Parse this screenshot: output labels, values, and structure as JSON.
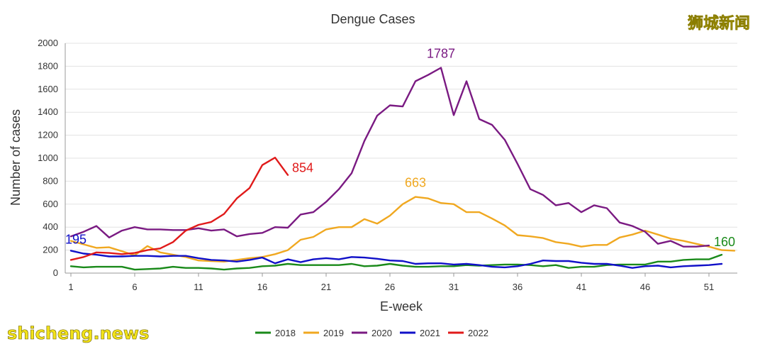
{
  "watermarks": {
    "top_right": "狮城新闻",
    "bottom_left": "shicheng.news"
  },
  "chart_data": {
    "type": "line",
    "title": "Dengue Cases",
    "xlabel": "E-week",
    "ylabel": "Number of cases",
    "xlim": [
      1,
      53
    ],
    "ylim": [
      0,
      2000
    ],
    "x_ticks": [
      1,
      6,
      11,
      16,
      21,
      26,
      31,
      36,
      41,
      46,
      51
    ],
    "y_ticks": [
      0,
      200,
      400,
      600,
      800,
      1000,
      1200,
      1400,
      1600,
      1800,
      2000
    ],
    "grid": "horizontal",
    "legend_position": "bottom",
    "series": [
      {
        "name": "2018",
        "color": "#1a8a1a",
        "x": [
          1,
          2,
          3,
          4,
          5,
          6,
          7,
          8,
          9,
          10,
          11,
          12,
          13,
          14,
          15,
          16,
          17,
          18,
          19,
          20,
          21,
          22,
          23,
          24,
          25,
          26,
          27,
          28,
          29,
          30,
          31,
          32,
          33,
          34,
          35,
          36,
          37,
          38,
          39,
          40,
          41,
          42,
          43,
          44,
          45,
          46,
          47,
          48,
          49,
          50,
          51,
          52
        ],
        "values": [
          60,
          50,
          55,
          55,
          55,
          30,
          35,
          40,
          55,
          45,
          45,
          40,
          30,
          40,
          45,
          60,
          65,
          80,
          70,
          70,
          70,
          70,
          80,
          60,
          65,
          80,
          65,
          55,
          55,
          60,
          60,
          70,
          65,
          70,
          75,
          75,
          70,
          60,
          70,
          45,
          55,
          55,
          70,
          75,
          75,
          75,
          100,
          100,
          115,
          120,
          120,
          160
        ]
      },
      {
        "name": "2019",
        "color": "#f0a820",
        "x": [
          1,
          2,
          3,
          4,
          5,
          6,
          7,
          8,
          9,
          10,
          11,
          12,
          13,
          14,
          15,
          16,
          17,
          18,
          19,
          20,
          21,
          22,
          23,
          24,
          25,
          26,
          27,
          28,
          29,
          30,
          31,
          32,
          33,
          34,
          35,
          36,
          37,
          38,
          39,
          40,
          41,
          42,
          43,
          44,
          45,
          46,
          47,
          48,
          49,
          50,
          51,
          52,
          53
        ],
        "values": [
          280,
          250,
          220,
          225,
          190,
          155,
          235,
          180,
          160,
          140,
          110,
          105,
          100,
          115,
          130,
          140,
          165,
          200,
          290,
          315,
          380,
          400,
          400,
          470,
          430,
          500,
          600,
          663,
          650,
          610,
          600,
          530,
          530,
          475,
          415,
          330,
          320,
          305,
          270,
          255,
          230,
          245,
          245,
          310,
          335,
          370,
          335,
          300,
          280,
          255,
          230,
          200,
          195
        ]
      },
      {
        "name": "2020",
        "color": "#7a1a82",
        "x": [
          1,
          2,
          3,
          4,
          5,
          6,
          7,
          8,
          9,
          10,
          11,
          12,
          13,
          14,
          15,
          16,
          17,
          18,
          19,
          20,
          21,
          22,
          23,
          24,
          25,
          26,
          27,
          28,
          29,
          30,
          31,
          32,
          33,
          34,
          35,
          36,
          37,
          38,
          39,
          40,
          41,
          42,
          43,
          44,
          45,
          46,
          47,
          48,
          49,
          50,
          51
        ],
        "values": [
          320,
          360,
          410,
          310,
          370,
          400,
          380,
          380,
          375,
          375,
          390,
          370,
          380,
          320,
          340,
          350,
          400,
          395,
          510,
          530,
          620,
          730,
          870,
          1150,
          1370,
          1460,
          1450,
          1670,
          1725,
          1787,
          1375,
          1670,
          1340,
          1290,
          1160,
          950,
          730,
          680,
          590,
          610,
          530,
          590,
          565,
          440,
          410,
          360,
          255,
          280,
          230,
          230,
          240
        ]
      },
      {
        "name": "2021",
        "color": "#1010c8",
        "x": [
          1,
          2,
          3,
          4,
          5,
          6,
          7,
          8,
          9,
          10,
          11,
          12,
          13,
          14,
          15,
          16,
          17,
          18,
          19,
          20,
          21,
          22,
          23,
          24,
          25,
          26,
          27,
          28,
          29,
          30,
          31,
          32,
          33,
          34,
          35,
          36,
          37,
          38,
          39,
          40,
          41,
          42,
          43,
          44,
          45,
          46,
          47,
          48,
          49,
          50,
          51,
          52
        ],
        "values": [
          195,
          170,
          160,
          145,
          145,
          150,
          150,
          145,
          150,
          150,
          130,
          115,
          110,
          100,
          115,
          135,
          85,
          120,
          95,
          120,
          130,
          120,
          140,
          135,
          125,
          110,
          105,
          80,
          85,
          85,
          75,
          80,
          70,
          55,
          50,
          60,
          80,
          110,
          105,
          105,
          90,
          80,
          80,
          65,
          45,
          60,
          65,
          50,
          60,
          65,
          70,
          80
        ]
      },
      {
        "name": "2022",
        "color": "#e01a1a",
        "x": [
          1,
          2,
          3,
          4,
          5,
          6,
          7,
          8,
          9,
          10,
          11,
          12,
          13,
          14,
          15,
          16,
          17,
          18
        ],
        "values": [
          115,
          140,
          180,
          175,
          165,
          175,
          200,
          215,
          270,
          370,
          420,
          445,
          515,
          650,
          740,
          940,
          1005,
          854
        ]
      }
    ],
    "annotations": [
      {
        "text": "195",
        "x": 1,
        "y": 195,
        "series": "2021"
      },
      {
        "text": "854",
        "x": 18,
        "y": 854,
        "series": "2022"
      },
      {
        "text": "663",
        "x": 28,
        "y": 663,
        "series": "2019"
      },
      {
        "text": "1787",
        "x": 30,
        "y": 1787,
        "series": "2020"
      },
      {
        "text": "160",
        "x": 52,
        "y": 160,
        "series": "2018"
      }
    ]
  }
}
